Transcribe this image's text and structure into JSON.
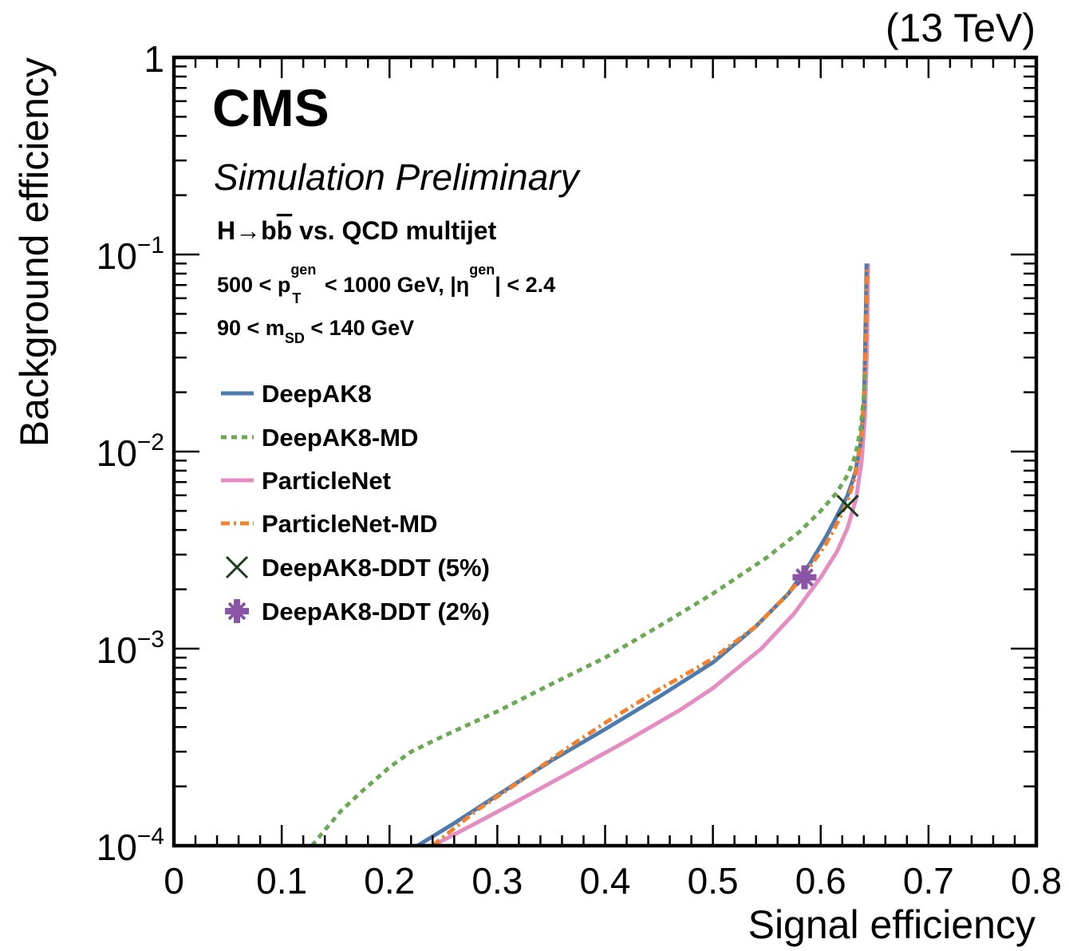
{
  "header": {
    "energy": "(13 TeV)",
    "experiment": "CMS",
    "status": "Simulation Preliminary"
  },
  "annotations": {
    "process": {
      "h": "H",
      "arrow": "→",
      "b1": "b",
      "b2": "b",
      "rest": " vs. QCD multijet"
    },
    "pt_cut": {
      "pre": "500 < p",
      "sup": "gen",
      "sub": "T",
      "mid": " < 1000 GeV, |η",
      "sup2": "gen",
      "post": "| < 2.4"
    },
    "mass_cut": {
      "pre": "90 < m",
      "sub": "SD",
      "post": " < 140 GeV"
    }
  },
  "colors": {
    "DeepAK8": "#4c7bb0",
    "DeepAK8-MD": "#6aaa52",
    "ParticleNet": "#e58cc3",
    "ParticleNet-MD": "#f2822e",
    "DDT5": "#1a3d1a",
    "DDT2": "#8a55a6"
  },
  "chart_data": {
    "type": "line",
    "xlabel": "Signal efficiency",
    "ylabel": "Background efficiency",
    "xlim": [
      0,
      0.8
    ],
    "ylim": [
      0.0001,
      1
    ],
    "yscale": "log",
    "x_ticks": [
      "0",
      "0.1",
      "0.2",
      "0.3",
      "0.4",
      "0.5",
      "0.6",
      "0.7",
      "0.8"
    ],
    "y_ticks": [
      {
        "base": "1",
        "exp": ""
      },
      {
        "base": "10",
        "exp": "−1"
      },
      {
        "base": "10",
        "exp": "−2"
      },
      {
        "base": "10",
        "exp": "−3"
      },
      {
        "base": "10",
        "exp": "−4"
      }
    ],
    "legend_position": "top-left",
    "series": [
      {
        "name": "DeepAK8",
        "style": "solid",
        "x": [
          0.226,
          0.26,
          0.3,
          0.35,
          0.4,
          0.45,
          0.5,
          0.54,
          0.57,
          0.59,
          0.605,
          0.615,
          0.625,
          0.632,
          0.637,
          0.64,
          0.641,
          0.642,
          0.6425
        ],
        "y": [
          0.0001,
          0.00013,
          0.00018,
          0.00027,
          0.00039,
          0.00057,
          0.00085,
          0.0013,
          0.0019,
          0.0027,
          0.0037,
          0.0047,
          0.006,
          0.0078,
          0.011,
          0.017,
          0.03,
          0.055,
          0.09
        ]
      },
      {
        "name": "DeepAK8-MD",
        "style": "dotted",
        "x": [
          0.128,
          0.14,
          0.155,
          0.175,
          0.2,
          0.22,
          0.25,
          0.3,
          0.35,
          0.4,
          0.45,
          0.5,
          0.55,
          0.58,
          0.6,
          0.615,
          0.625,
          0.632,
          0.637,
          0.64,
          0.641
        ],
        "y": [
          0.0001,
          0.00012,
          0.00015,
          0.00019,
          0.00025,
          0.0003,
          0.00036,
          0.00048,
          0.00066,
          0.0009,
          0.0013,
          0.0019,
          0.0029,
          0.0039,
          0.005,
          0.0062,
          0.0076,
          0.0095,
          0.013,
          0.019,
          0.025
        ]
      },
      {
        "name": "ParticleNet",
        "style": "solid",
        "x": [
          0.24,
          0.28,
          0.32,
          0.37,
          0.42,
          0.47,
          0.5,
          0.545,
          0.575,
          0.6,
          0.615,
          0.625,
          0.633,
          0.638,
          0.641,
          0.643,
          0.644
        ],
        "y": [
          0.0001,
          0.00013,
          0.00017,
          0.00024,
          0.00034,
          0.00049,
          0.00063,
          0.001,
          0.0015,
          0.0023,
          0.0031,
          0.0041,
          0.0058,
          0.009,
          0.015,
          0.035,
          0.09
        ]
      },
      {
        "name": "ParticleNet-MD",
        "style": "dashdot",
        "x": [
          0.24,
          0.28,
          0.32,
          0.36,
          0.4,
          0.45,
          0.5,
          0.54,
          0.57,
          0.59,
          0.605,
          0.615,
          0.625,
          0.632,
          0.637,
          0.64,
          0.642,
          0.643
        ],
        "y": [
          0.0001,
          0.00015,
          0.00021,
          0.0003,
          0.00042,
          0.00062,
          0.00089,
          0.0013,
          0.0019,
          0.0026,
          0.0034,
          0.0043,
          0.0056,
          0.0075,
          0.011,
          0.018,
          0.04,
          0.085
        ]
      }
    ],
    "markers": [
      {
        "name": "DeepAK8-DDT (5%)",
        "x": 0.625,
        "y": 0.0053
      },
      {
        "name": "DeepAK8-DDT (2%)",
        "x": 0.585,
        "y": 0.0023
      }
    ]
  }
}
